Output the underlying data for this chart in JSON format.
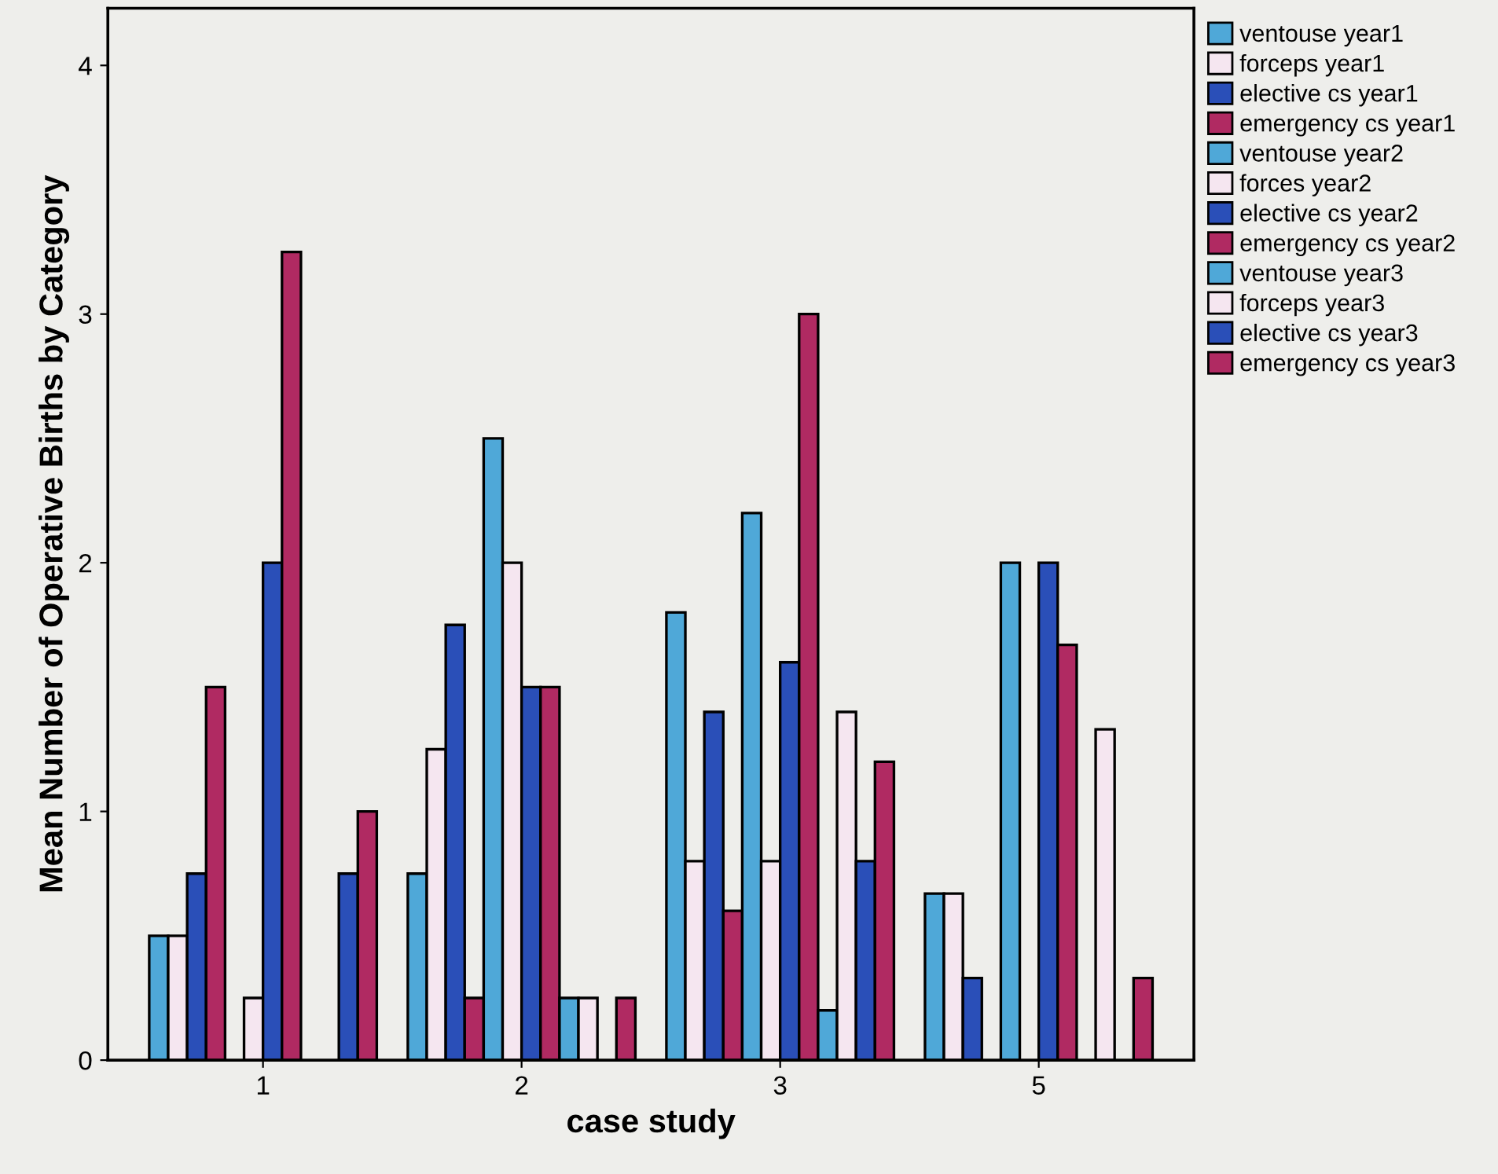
{
  "chart_data": {
    "type": "bar",
    "xlabel": "case study",
    "ylabel": "Mean Number of Operative Births by Category",
    "categories": [
      "1",
      "2",
      "3",
      "5"
    ],
    "series": [
      {
        "name": "ventouse year1",
        "color": "#4fa8d8",
        "values": [
          0.5,
          0.75,
          1.8,
          0.67
        ]
      },
      {
        "name": "forceps year1",
        "color": "#f5e6f0",
        "values": [
          0.5,
          1.25,
          0.8,
          0.67
        ]
      },
      {
        "name": "elective cs year1",
        "color": "#2a4fb8",
        "values": [
          0.75,
          1.75,
          1.4,
          0.33
        ]
      },
      {
        "name": "emergency cs year1",
        "color": "#b02a62",
        "values": [
          1.5,
          0.25,
          0.6,
          null
        ]
      },
      {
        "name": "ventouse year2",
        "color": "#4fa8d8",
        "values": [
          null,
          2.5,
          2.2,
          2.0
        ]
      },
      {
        "name": "forces year2",
        "color": "#f5e6f0",
        "values": [
          0.25,
          2.0,
          0.8,
          null
        ]
      },
      {
        "name": "elective cs year2",
        "color": "#2a4fb8",
        "values": [
          2.0,
          1.5,
          1.6,
          2.0
        ]
      },
      {
        "name": "emergency cs year2",
        "color": "#b02a62",
        "values": [
          3.25,
          1.5,
          3.0,
          1.67
        ]
      },
      {
        "name": "ventouse year3",
        "color": "#4fa8d8",
        "values": [
          null,
          0.25,
          0.2,
          null
        ]
      },
      {
        "name": "forceps year3",
        "color": "#f5e6f0",
        "values": [
          null,
          0.25,
          1.4,
          1.33
        ]
      },
      {
        "name": "elective cs year3",
        "color": "#2a4fb8",
        "values": [
          0.75,
          null,
          0.8,
          null
        ]
      },
      {
        "name": "emergency cs year3",
        "color": "#b02a62",
        "values": [
          1.0,
          0.25,
          1.2,
          0.33
        ]
      }
    ],
    "ylim": [
      0,
      4.23
    ],
    "yticks": [
      0,
      1,
      2,
      3,
      4
    ],
    "grid": false,
    "legend": "top right"
  }
}
